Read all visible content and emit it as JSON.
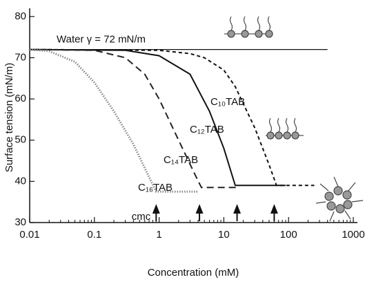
{
  "chart_data": {
    "type": "line",
    "x_label": "Concentration (mM)",
    "y_label": "Surface tension (mN/m)",
    "xscale": "log",
    "xlim": [
      0.01,
      1000
    ],
    "ylim": [
      30,
      82
    ],
    "xticks": [
      0.01,
      0.1,
      1,
      10,
      100,
      1000
    ],
    "yticks": [
      30,
      40,
      50,
      60,
      70,
      80
    ],
    "reference_line": {
      "label": "Water γ = 72 mN/m",
      "value": 72,
      "xlim": [
        0.01,
        400
      ]
    },
    "cmc": {
      "label": "cmc",
      "x": [
        0.9,
        4.2,
        16,
        60
      ]
    },
    "series": [
      {
        "name": "C₁₀TAB",
        "color": "#111111",
        "dash": "short",
        "x": [
          0.01,
          1,
          3,
          5,
          10,
          15,
          30,
          50,
          65,
          250
        ],
        "values": [
          72,
          71.8,
          71,
          70,
          67,
          63,
          53,
          44,
          39,
          39
        ]
      },
      {
        "name": "C₁₂TAB",
        "color": "#111111",
        "dash": "solid",
        "x": [
          0.01,
          0.3,
          1,
          3,
          6,
          10,
          15,
          90
        ],
        "values": [
          72,
          71.8,
          70.5,
          66,
          57,
          48,
          39,
          39
        ]
      },
      {
        "name": "C₁₄TAB",
        "color": "#222222",
        "dash": "long",
        "x": [
          0.01,
          0.1,
          0.3,
          0.6,
          1,
          2,
          3.5,
          4.5,
          17
        ],
        "values": [
          72,
          71.8,
          70,
          66,
          60,
          50,
          42,
          38.5,
          38.5
        ]
      },
      {
        "name": "C₁₆TAB",
        "color": "#888888",
        "dash": "dotted",
        "x": [
          0.01,
          0.02,
          0.05,
          0.1,
          0.2,
          0.4,
          0.7,
          0.9,
          4
        ],
        "values": [
          72,
          71.6,
          69,
          64,
          57,
          49,
          41,
          37.5,
          37.5
        ]
      }
    ]
  }
}
